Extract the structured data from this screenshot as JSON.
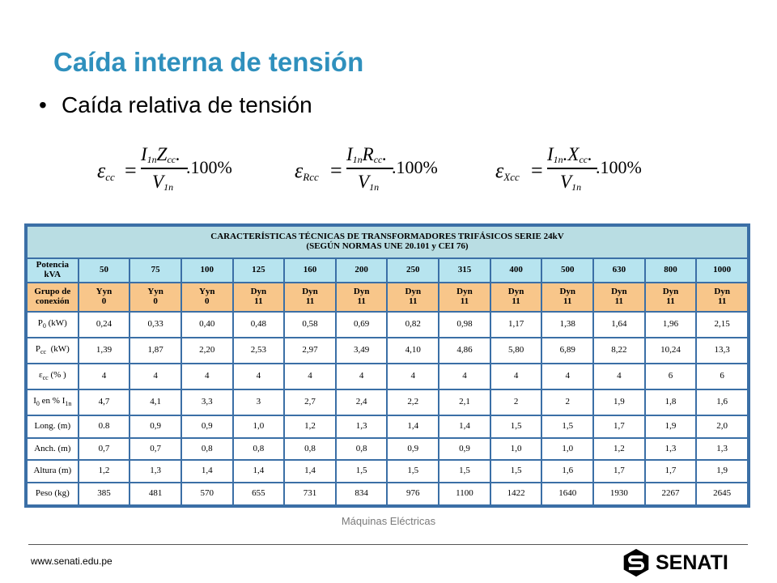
{
  "slide": {
    "title": "Caída interna de tensión",
    "bullet_marker": "•",
    "bullet": "Caída relativa de tensión"
  },
  "formulas": [
    {
      "eps": "ε",
      "sub": "cc",
      "eq": "=",
      "num_main": "I",
      "num_sub": "1n",
      "num_var": "Z",
      "num_var_sub": "cc",
      "num_dot": ".",
      "den_main": "V",
      "den_sub": "1n",
      "pct": ".100%"
    },
    {
      "eps": "ε",
      "sub": "Rcc",
      "eq": "=",
      "num_main": "I",
      "num_sub": "1n",
      "num_var": "R",
      "num_var_sub": "cc",
      "num_dot": ".",
      "den_main": "V",
      "den_sub": "1n",
      "pct": ".100%"
    },
    {
      "eps": "ε",
      "sub": "Xcc",
      "eq": "=",
      "num_main": "I",
      "num_sub": "1n",
      "num_var": ".X",
      "num_var_sub": "cc",
      "num_dot": ".",
      "den_main": "V",
      "den_sub": "1n",
      "pct": ".100%"
    }
  ],
  "table": {
    "title_line1": "CARACTERÍSTICAS TÉCNICAS DE TRANSFORMADORES TRIFÁSICOS SERIE 24kV",
    "title_line2": "(SEGÚN NORMAS UNE 20.101 y CEI 76)",
    "potencia_label": "Potencia kVA",
    "potencias": [
      "50",
      "75",
      "100",
      "125",
      "160",
      "200",
      "250",
      "315",
      "400",
      "500",
      "630",
      "800",
      "1000"
    ],
    "grupo_label": "Grupo de conexión",
    "grupos": [
      [
        "Yyn",
        "0"
      ],
      [
        "Yyn",
        "0"
      ],
      [
        "Yyn",
        "0"
      ],
      [
        "Dyn",
        "11"
      ],
      [
        "Dyn",
        "11"
      ],
      [
        "Dyn",
        "11"
      ],
      [
        "Dyn",
        "11"
      ],
      [
        "Dyn",
        "11"
      ],
      [
        "Dyn",
        "11"
      ],
      [
        "Dyn",
        "11"
      ],
      [
        "Dyn",
        "11"
      ],
      [
        "Dyn",
        "11"
      ],
      [
        "Dyn",
        "11"
      ]
    ],
    "rows": [
      {
        "label": "P",
        "label_sub": "0",
        "label_rest": " (kW)",
        "values": [
          "0,24",
          "0,33",
          "0,40",
          "0,48",
          "0,58",
          "0,69",
          "0,82",
          "0,98",
          "1,17",
          "1,38",
          "1,64",
          "1,96",
          "2,15"
        ]
      },
      {
        "label": "P",
        "label_sub": "cc",
        "label_rest": "  (kW)",
        "values": [
          "1,39",
          "1,87",
          "2,20",
          "2,53",
          "2,97",
          "3,49",
          "4,10",
          "4,86",
          "5,80",
          "6,89",
          "8,22",
          "10,24",
          "13,3"
        ]
      },
      {
        "label": "ε",
        "label_sub": "cc",
        "label_rest": " (% )",
        "values": [
          "4",
          "4",
          "4",
          "4",
          "4",
          "4",
          "4",
          "4",
          "4",
          "4",
          "4",
          "6",
          "6"
        ]
      },
      {
        "label": "I",
        "label_sub": "0",
        "label_rest": " en % I",
        "label_sub2": "1n",
        "values": [
          "4,7",
          "4,1",
          "3,3",
          "3",
          "2,7",
          "2,4",
          "2,2",
          "2,1",
          "2",
          "2",
          "1,9",
          "1,8",
          "1,6"
        ]
      },
      {
        "label": "Long. (m)",
        "label_sub": "",
        "label_rest": "",
        "values": [
          "0.8",
          "0,9",
          "0,9",
          "1,0",
          "1,2",
          "1,3",
          "1,4",
          "1,4",
          "1,5",
          "1,5",
          "1,7",
          "1,9",
          "2,0"
        ]
      },
      {
        "label": "Anch. (m)",
        "label_sub": "",
        "label_rest": "",
        "values": [
          "0,7",
          "0,7",
          "0,8",
          "0,8",
          "0,8",
          "0,8",
          "0,9",
          "0,9",
          "1,0",
          "1,0",
          "1,2",
          "1,3",
          "1,3"
        ]
      },
      {
        "label": "Altura (m)",
        "label_sub": "",
        "label_rest": "",
        "values": [
          "1,2",
          "1,3",
          "1,4",
          "1,4",
          "1,4",
          "1,5",
          "1,5",
          "1,5",
          "1,5",
          "1,6",
          "1,7",
          "1,7",
          "1,9"
        ]
      },
      {
        "label": "Peso (kg)",
        "label_sub": "",
        "label_rest": "",
        "values": [
          "385",
          "481",
          "570",
          "655",
          "731",
          "834",
          "976",
          "1100",
          "1422",
          "1640",
          "1930",
          "2267",
          "2645"
        ]
      }
    ]
  },
  "footer": {
    "center_text": "Máquinas Eléctricas",
    "url": "www.senati.edu.pe",
    "brand": "SENATI"
  }
}
